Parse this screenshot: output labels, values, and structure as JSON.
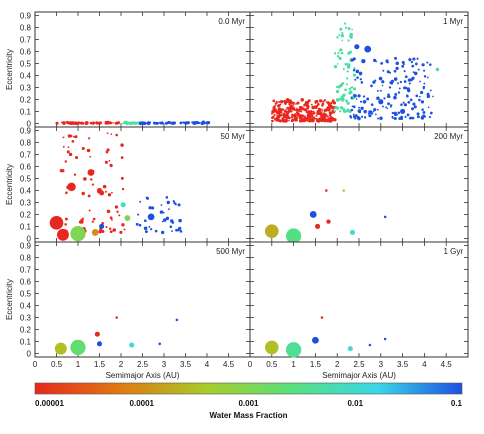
{
  "chart_data": {
    "type": "scatter",
    "xlabel": "Semimajor Axis (AU)",
    "ylabel": "Eccentricity",
    "xlim": [
      0,
      5
    ],
    "ylim": [
      -0.03,
      0.93
    ],
    "xticks": [
      "0",
      "0.5",
      "1",
      "1.5",
      "2",
      "2.5",
      "3",
      "3.5",
      "4",
      "4.5"
    ],
    "yticks": [
      "0",
      "0.1",
      "0.2",
      "0.3",
      "0.4",
      "0.5",
      "0.6",
      "0.7",
      "0.8",
      "0.9"
    ],
    "layout": "3 rows x 2 columns of panels sharing axes",
    "colorbar": {
      "label": "Water Mass Fraction",
      "scale": "log",
      "ticks": [
        "0.00001",
        "0.0001",
        "0.001",
        "0.01",
        "0.1"
      ],
      "colors": [
        "#e8281e",
        "#e07a10",
        "#a8cc2a",
        "#58e07a",
        "#3ad8e8",
        "#1e50e0"
      ]
    },
    "marker_note": "marker size indicates body mass; color indicates water mass fraction",
    "panels": [
      {
        "label": "0.0 Myr",
        "generated": [
          {
            "a_min": 0.5,
            "a_max": 1.95,
            "e_min": 0.0,
            "e_max": 0.01,
            "n": 60,
            "water": 1e-05
          },
          {
            "a_min": 1.95,
            "a_max": 2.45,
            "e_min": 0.0,
            "e_max": 0.01,
            "n": 25,
            "water": 0.005
          },
          {
            "a_min": 2.45,
            "a_max": 4.05,
            "e_min": 0.0,
            "e_max": 0.01,
            "n": 70,
            "water": 0.1
          }
        ],
        "points": []
      },
      {
        "label": "1 Myr",
        "generated": [
          {
            "a_min": 0.5,
            "a_max": 1.95,
            "e_min": 0.02,
            "e_max": 0.2,
            "n": 300,
            "water": 1e-05
          },
          {
            "a_min": 1.95,
            "a_max": 2.4,
            "e_min": 0.1,
            "e_max": 0.85,
            "n": 80,
            "water": 0.005
          },
          {
            "a_min": 2.3,
            "a_max": 4.2,
            "e_min": 0.04,
            "e_max": 0.55,
            "n": 180,
            "water": 0.1
          }
        ],
        "points": [
          {
            "a": 2.45,
            "e": 0.64,
            "m": 3,
            "water": 0.1
          },
          {
            "a": 2.7,
            "e": 0.62,
            "m": 4,
            "water": 0.1
          },
          {
            "a": 2.6,
            "e": 0.52,
            "m": 2.5,
            "water": 0.1
          },
          {
            "a": 3.0,
            "e": 0.18,
            "m": 3,
            "water": 0.1
          },
          {
            "a": 3.5,
            "e": 0.1,
            "m": 3,
            "water": 0.1
          },
          {
            "a": 4.3,
            "e": 0.45,
            "m": 2,
            "water": 0.005
          }
        ]
      },
      {
        "label": "50 Myr",
        "generated": [
          {
            "a_min": 0.6,
            "a_max": 2.1,
            "e_min": 0.05,
            "e_max": 0.9,
            "n": 80,
            "water": 1e-05
          },
          {
            "a_min": 2.3,
            "a_max": 3.4,
            "e_min": 0.05,
            "e_max": 0.35,
            "n": 40,
            "water": 0.1
          }
        ],
        "points": [
          {
            "a": 0.5,
            "e": 0.13,
            "m": 8,
            "water": 1e-05
          },
          {
            "a": 0.65,
            "e": 0.03,
            "m": 7,
            "water": 1e-05
          },
          {
            "a": 1.0,
            "e": 0.04,
            "m": 9,
            "water": 0.001
          },
          {
            "a": 0.85,
            "e": 0.43,
            "m": 5,
            "water": 1e-05
          },
          {
            "a": 1.3,
            "e": 0.55,
            "m": 4,
            "water": 1e-05
          },
          {
            "a": 1.5,
            "e": 0.4,
            "m": 3,
            "water": 1e-05
          },
          {
            "a": 1.4,
            "e": 0.05,
            "m": 4,
            "water": 0.0001
          },
          {
            "a": 1.55,
            "e": 0.1,
            "m": 3,
            "water": 0.1
          },
          {
            "a": 1.55,
            "e": 0.38,
            "m": 3,
            "water": 1e-05
          },
          {
            "a": 2.05,
            "e": 0.28,
            "m": 3,
            "water": 0.01
          },
          {
            "a": 2.15,
            "e": 0.17,
            "m": 3.5,
            "water": 0.001
          },
          {
            "a": 2.7,
            "e": 0.18,
            "m": 4,
            "water": 0.1
          },
          {
            "a": 3.1,
            "e": 0.3,
            "m": 2,
            "water": 0.1
          }
        ]
      },
      {
        "label": "200 Myr",
        "generated": [],
        "points": [
          {
            "a": 0.5,
            "e": 0.06,
            "m": 8,
            "water": 0.0002
          },
          {
            "a": 1.0,
            "e": 0.02,
            "m": 9,
            "water": 0.003
          },
          {
            "a": 1.45,
            "e": 0.2,
            "m": 4,
            "water": 0.1
          },
          {
            "a": 1.55,
            "e": 0.1,
            "m": 3,
            "water": 1e-05
          },
          {
            "a": 1.8,
            "e": 0.14,
            "m": 2.5,
            "water": 1e-05
          },
          {
            "a": 2.35,
            "e": 0.05,
            "m": 3,
            "water": 0.01
          },
          {
            "a": 2.15,
            "e": 0.4,
            "m": 1.5,
            "water": 0.001
          },
          {
            "a": 1.75,
            "e": 0.4,
            "m": 1.5,
            "water": 1e-05
          },
          {
            "a": 3.1,
            "e": 0.18,
            "m": 1.5,
            "water": 0.1
          }
        ]
      },
      {
        "label": "500 Myr",
        "generated": [],
        "points": [
          {
            "a": 0.6,
            "e": 0.04,
            "m": 7,
            "water": 0.0003
          },
          {
            "a": 1.0,
            "e": 0.05,
            "m": 9,
            "water": 0.002
          },
          {
            "a": 1.45,
            "e": 0.16,
            "m": 3,
            "water": 1e-05
          },
          {
            "a": 1.5,
            "e": 0.08,
            "m": 3,
            "water": 0.1
          },
          {
            "a": 2.25,
            "e": 0.07,
            "m": 3,
            "water": 0.01
          },
          {
            "a": 3.3,
            "e": 0.28,
            "m": 1.5,
            "water": 0.1
          },
          {
            "a": 1.9,
            "e": 0.3,
            "m": 1.5,
            "water": 1e-05
          },
          {
            "a": 2.9,
            "e": 0.08,
            "m": 1.5,
            "water": 0.1
          }
        ]
      },
      {
        "label": "1 Gyr",
        "generated": [],
        "points": [
          {
            "a": 0.5,
            "e": 0.05,
            "m": 8,
            "water": 0.0003
          },
          {
            "a": 1.0,
            "e": 0.03,
            "m": 9,
            "water": 0.004
          },
          {
            "a": 1.5,
            "e": 0.11,
            "m": 4,
            "water": 0.1
          },
          {
            "a": 2.3,
            "e": 0.04,
            "m": 3,
            "water": 0.01
          },
          {
            "a": 3.1,
            "e": 0.12,
            "m": 1.5,
            "water": 0.1
          },
          {
            "a": 1.65,
            "e": 0.3,
            "m": 1.5,
            "water": 1e-05
          },
          {
            "a": 2.75,
            "e": 0.07,
            "m": 1.5,
            "water": 0.1
          }
        ]
      }
    ]
  }
}
